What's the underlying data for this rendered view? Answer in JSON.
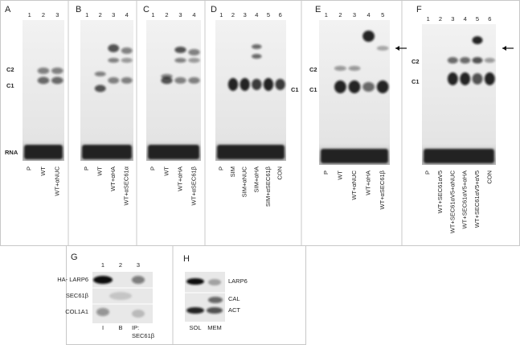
{
  "panels": [
    {
      "label": "A",
      "lanes": [
        "1",
        "2",
        "3"
      ],
      "lane_labels": [
        "P",
        "WT",
        "WT+αNUC"
      ],
      "band_labels": [
        "C2",
        "C1",
        "RNA"
      ]
    },
    {
      "label": "B",
      "lanes": [
        "1",
        "2",
        "3",
        "4"
      ],
      "lane_labels": [
        "P",
        "WT",
        "WT+αHA",
        "WT+αSEC61α"
      ]
    },
    {
      "label": "C",
      "lanes": [
        "1",
        "2",
        "3",
        "4"
      ],
      "lane_labels": [
        "P",
        "WT",
        "WT+αHA",
        "WT+αSEC61β"
      ]
    },
    {
      "label": "D",
      "lanes": [
        "1",
        "2",
        "3",
        "4",
        "5",
        "6"
      ],
      "lane_labels": [
        "P",
        "SIM",
        "SIM+αNUC",
        "SIM+αHA",
        "SIM+αSEC61β",
        "CON"
      ],
      "band_labels": [
        "C1"
      ]
    },
    {
      "label": "E",
      "lanes": [
        "1",
        "2",
        "3",
        "4",
        "5"
      ],
      "lane_labels": [
        "P",
        "WT",
        "WT+αNUC",
        "WT+αHA",
        "WT+αSEC61β"
      ],
      "band_labels": [
        "C2",
        "C1"
      ]
    },
    {
      "label": "F",
      "lanes": [
        "1",
        "2",
        "3",
        "4",
        "5",
        "6"
      ],
      "lane_labels": [
        "P",
        "WT+SEC61αV5",
        "WT+SEC61αV5+αNUC",
        "WT+SEC61αV5+αHA",
        "WT+SEC61αV5+αV5",
        "CON"
      ],
      "band_labels": [
        "C2",
        "C1"
      ]
    }
  ],
  "blots": [
    {
      "label": "G",
      "lanes": [
        "1",
        "2",
        "3"
      ],
      "row_labels": [
        "HA- LARP6",
        "SEC61β",
        "COL1A1"
      ],
      "bottom_labels": [
        "I",
        "B",
        "IP:",
        "SEC61β"
      ]
    },
    {
      "label": "H",
      "row_labels": [
        "LARP6",
        "CAL",
        "ACT"
      ],
      "bottom_labels": [
        "SOL",
        "MEM"
      ]
    }
  ]
}
